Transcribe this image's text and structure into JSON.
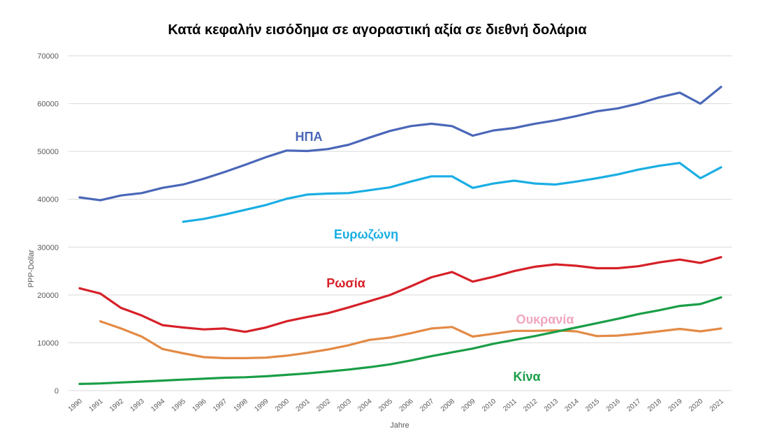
{
  "chart_data": {
    "type": "line",
    "title": "Κατά κεφαλήν εισόδημα σε αγοραστική αξία σε διεθνή δολάρια",
    "xlabel": "Jahre",
    "ylabel": "PPP-Dollar",
    "ylim": [
      0,
      70000
    ],
    "yticks": [
      0,
      10000,
      20000,
      30000,
      40000,
      50000,
      60000,
      70000
    ],
    "grid": true,
    "x": [
      1990,
      1991,
      1992,
      1993,
      1994,
      1995,
      1996,
      1997,
      1998,
      1999,
      2000,
      2001,
      2002,
      2003,
      2004,
      2005,
      2006,
      2007,
      2008,
      2009,
      2010,
      2011,
      2012,
      2013,
      2014,
      2015,
      2016,
      2017,
      2018,
      2019,
      2020,
      2021
    ],
    "series": [
      {
        "name": "ΗΠΑ",
        "color": "#4a67b8",
        "values": [
          40400,
          39800,
          40800,
          41300,
          42400,
          43100,
          44300,
          45700,
          47200,
          48800,
          50200,
          50100,
          50500,
          51400,
          52900,
          54300,
          55300,
          55800,
          55300,
          53300,
          54400,
          54900,
          55800,
          56500,
          57400,
          58400,
          59000,
          60000,
          61300,
          62300,
          60000,
          63500
        ]
      },
      {
        "name": "Ευρωζώνη",
        "color": "#1aaee3",
        "values": [
          null,
          null,
          null,
          null,
          null,
          35300,
          35900,
          36800,
          37800,
          38800,
          40100,
          41000,
          41200,
          41300,
          41900,
          42500,
          43700,
          44800,
          44800,
          42400,
          43300,
          43900,
          43300,
          43100,
          43700,
          44400,
          45200,
          46200,
          47000,
          47600,
          44400,
          46700
        ]
      },
      {
        "name": "Ρωσία",
        "color": "#d62028",
        "values": [
          21400,
          20300,
          17300,
          15700,
          13700,
          13200,
          12800,
          13000,
          12300,
          13200,
          14500,
          15400,
          16200,
          17400,
          18700,
          20000,
          21800,
          23700,
          24800,
          22800,
          23800,
          25000,
          25900,
          26400,
          26100,
          25600,
          25600,
          26000,
          26800,
          27400,
          26700,
          27900
        ]
      },
      {
        "name": "Ουκρανία",
        "color": "#e38a45",
        "label_color": "#f0a6bf",
        "values": [
          null,
          14500,
          13000,
          11300,
          8700,
          7800,
          7000,
          6800,
          6800,
          6900,
          7300,
          7900,
          8600,
          9500,
          10600,
          11100,
          12000,
          13000,
          13300,
          11300,
          11900,
          12500,
          12500,
          12600,
          12400,
          11400,
          11500,
          11900,
          12400,
          12900,
          12400,
          13000
        ]
      },
      {
        "name": "Κίνα",
        "color": "#1a9e47",
        "values": [
          1400,
          1500,
          1700,
          1900,
          2100,
          2300,
          2500,
          2700,
          2800,
          3000,
          3300,
          3600,
          4000,
          4400,
          4900,
          5500,
          6300,
          7200,
          8000,
          8800,
          9800,
          10600,
          11400,
          12300,
          13200,
          14100,
          15000,
          16000,
          16800,
          17700,
          18100,
          19500
        ]
      }
    ]
  }
}
